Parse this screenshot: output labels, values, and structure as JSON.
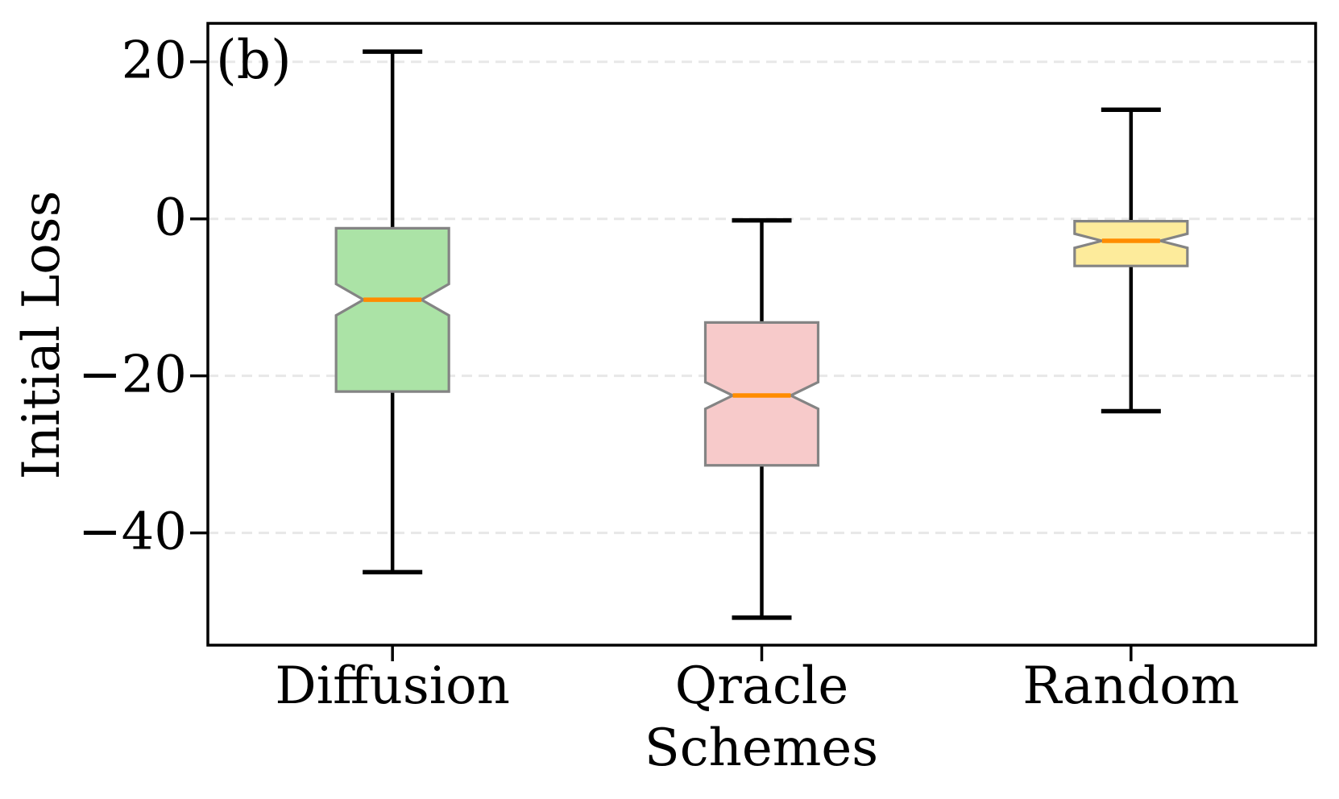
{
  "chart_data": {
    "type": "boxplot",
    "notched": true,
    "panel_label": "(b)",
    "xlabel": "Schemes",
    "ylabel": "Initial Loss",
    "categories": [
      "Diffusion",
      "Qracle",
      "Random"
    ],
    "ylim": [
      -54.3,
      24.9
    ],
    "yticks": [
      {
        "value": 20,
        "label": "20"
      },
      {
        "value": 0,
        "label": "0"
      },
      {
        "value": -20,
        "label": "−20"
      },
      {
        "value": -40,
        "label": "−40"
      }
    ],
    "grid": {
      "axis": "y",
      "style": "dashed",
      "color": "#e8e8e8"
    },
    "legend": "none",
    "series": [
      {
        "label": "Diffusion",
        "fill": "#abe3a6",
        "whisker_low": -45.0,
        "q1": -22.0,
        "median": -10.3,
        "q3": -1.2,
        "whisker_high": 21.3,
        "notch_low": -12.3,
        "notch_high": -8.3
      },
      {
        "label": "Qracle",
        "fill": "#f7caca",
        "whisker_low": -50.8,
        "q1": -31.4,
        "median": -22.5,
        "q3": -13.2,
        "whisker_high": -0.2,
        "notch_low": -24.2,
        "notch_high": -20.8
      },
      {
        "label": "Random",
        "fill": "#fdeb9b",
        "whisker_low": -24.5,
        "q1": -6.0,
        "median": -2.8,
        "q3": -0.3,
        "whisker_high": 13.9,
        "notch_low": -3.7,
        "notch_high": -1.9
      }
    ],
    "colors": {
      "median": "#ff8c00",
      "box_edge": "#848484",
      "whisker": "#000000",
      "spine": "#000000",
      "grid": "#e8e8e8",
      "text": "#000000"
    }
  }
}
